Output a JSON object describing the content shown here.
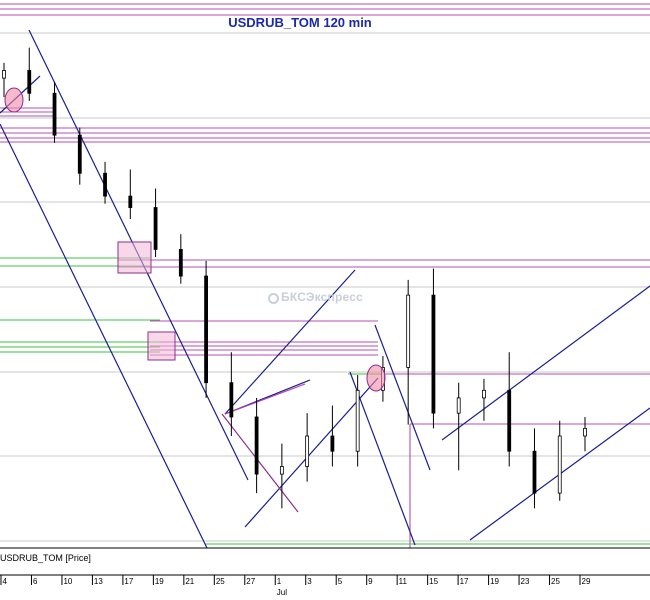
{
  "chart_data": {
    "type": "candlestick",
    "title": "USDRUB_TOM 120 min",
    "series_label": "USDRUB_TOM [Price]",
    "watermark": "БКСЭкспресс",
    "x_ticks": [
      {
        "label": "4",
        "pos": 1
      },
      {
        "label": "6",
        "pos": 2
      },
      {
        "label": "10",
        "pos": 3
      },
      {
        "label": "13",
        "pos": 4
      },
      {
        "label": "17",
        "pos": 5
      },
      {
        "label": "19",
        "pos": 6
      },
      {
        "label": "21",
        "pos": 7
      },
      {
        "label": "25",
        "pos": 8
      },
      {
        "label": "27",
        "pos": 9
      },
      {
        "label": "1",
        "pos": 10
      },
      {
        "label": "3",
        "pos": 11
      },
      {
        "label": "5",
        "pos": 12
      },
      {
        "label": "9",
        "pos": 13
      },
      {
        "label": "11",
        "pos": 14
      },
      {
        "label": "15",
        "pos": 15
      },
      {
        "label": "17",
        "pos": 16
      },
      {
        "label": "19",
        "pos": 17
      },
      {
        "label": "23",
        "pos": 18
      },
      {
        "label": "25",
        "pos": 19
      },
      {
        "label": "29",
        "pos": 20
      }
    ],
    "x_month_labels": [
      {
        "label": "Jul",
        "pos": 10
      }
    ],
    "series": [
      {
        "values": [
          {
            "o": 4.0,
            "h": 4.8,
            "l": 3.0,
            "c": 4.4
          },
          {
            "o": 4.4,
            "h": 5.6,
            "l": 2.8,
            "c": 3.2
          },
          {
            "o": 3.2,
            "h": 3.8,
            "l": 0.6,
            "c": 1.0
          },
          {
            "o": 1.0,
            "h": 1.4,
            "l": -1.6,
            "c": -1.0
          },
          {
            "o": -1.0,
            "h": -0.4,
            "l": -2.6,
            "c": -2.2
          },
          {
            "o": -2.2,
            "h": -0.8,
            "l": -3.4,
            "c": -2.8
          },
          {
            "o": -2.8,
            "h": -1.8,
            "l": -5.4,
            "c": -5.0
          },
          {
            "o": -5.0,
            "h": -4.2,
            "l": -6.8,
            "c": -6.4
          },
          {
            "o": -6.4,
            "h": -5.6,
            "l": -12.8,
            "c": -12.0
          },
          {
            "o": -12.0,
            "h": -10.4,
            "l": -14.8,
            "c": -13.8
          },
          {
            "o": -13.8,
            "h": -12.8,
            "l": -17.8,
            "c": -16.8
          },
          {
            "o": -16.8,
            "h": -15.2,
            "l": -18.6,
            "c": -16.4
          },
          {
            "o": -16.4,
            "h": -13.6,
            "l": -17.2,
            "c": -14.8
          },
          {
            "o": -14.8,
            "h": -13.2,
            "l": -16.4,
            "c": -15.6
          },
          {
            "o": -15.6,
            "h": -11.6,
            "l": -16.4,
            "c": -12.4
          },
          {
            "o": -12.4,
            "h": -10.6,
            "l": -13.0,
            "c": -11.2
          },
          {
            "o": -11.2,
            "h": -6.6,
            "l": -14.2,
            "c": -7.4
          },
          {
            "o": -7.4,
            "h": -6.0,
            "l": -14.4,
            "c": -13.6
          },
          {
            "o": -13.6,
            "h": -12.0,
            "l": -16.6,
            "c": -12.8
          },
          {
            "o": -12.8,
            "h": -11.8,
            "l": -14.0,
            "c": -12.4
          },
          {
            "o": -12.4,
            "h": -10.4,
            "l": -16.4,
            "c": -15.6
          },
          {
            "o": -15.6,
            "h": -14.4,
            "l": -18.6,
            "c": -17.8
          },
          {
            "o": -17.8,
            "h": -14.0,
            "l": -18.2,
            "c": -14.8
          },
          {
            "o": -14.8,
            "h": -13.8,
            "l": -15.6,
            "c": -14.4
          }
        ]
      }
    ],
    "y_domain": [
      -20,
      6
    ]
  }
}
